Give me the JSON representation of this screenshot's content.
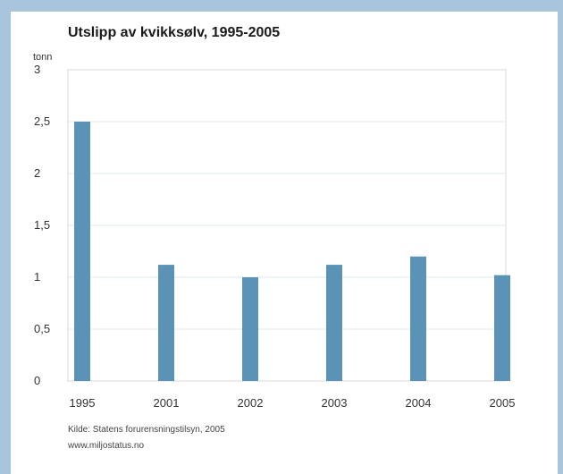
{
  "chart_data": {
    "type": "bar",
    "title": "Utslipp av kvikksølv, 1995-2005",
    "ylabel": "tonn",
    "xlabel": "",
    "categories": [
      "1995",
      "2001",
      "2002",
      "2003",
      "2004",
      "2005"
    ],
    "values": [
      2.5,
      1.12,
      1.0,
      1.12,
      1.2,
      1.02
    ],
    "ylim": [
      0,
      3
    ],
    "yticks": [
      "0",
      "0,5",
      "1",
      "1,5",
      "2",
      "2,5",
      "3"
    ],
    "grid": true,
    "bar_color": "#5b93b8"
  },
  "footer": {
    "source": "Kilde: Statens forurensningstilsyn, 2005",
    "url": "www.miljostatus.no"
  }
}
